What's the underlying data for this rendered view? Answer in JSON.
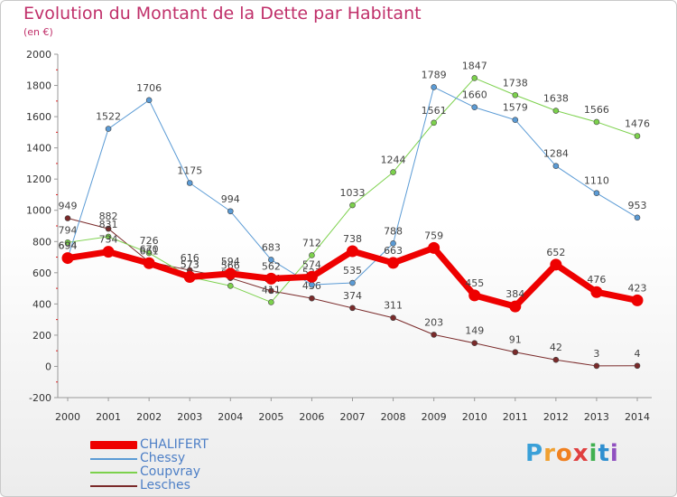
{
  "title": "Evolution du Montant de la Dette par Habitant",
  "subtitle": "(en €)",
  "logo": {
    "letters": [
      "P",
      "r",
      "o",
      "x",
      "i",
      "t",
      "i"
    ],
    "colors": [
      "#3aa0d8",
      "#f0a030",
      "#f08020",
      "#e04040",
      "#40b050",
      "#2f8fd0",
      "#9050c0"
    ]
  },
  "legend": [
    {
      "label": "CHALIFERT",
      "color": "#ee0000"
    },
    {
      "label": "Chessy",
      "color": "#5b9bd5"
    },
    {
      "label": "Coupvray",
      "color": "#7cd14c"
    },
    {
      "label": "Lesches",
      "color": "#7a2a2a"
    }
  ],
  "chart_data": {
    "type": "line",
    "categories": [
      "2000",
      "2001",
      "2002",
      "2003",
      "2004",
      "2005",
      "2006",
      "2007",
      "2008",
      "2009",
      "2010",
      "2011",
      "2012",
      "2013",
      "2014"
    ],
    "ylim": [
      -200,
      2000
    ],
    "yticks": [
      "-200",
      "0",
      "200",
      "400",
      "600",
      "800",
      "1000",
      "1200",
      "1400",
      "1600",
      "1800",
      "2000"
    ],
    "grid": false,
    "legend_position": "bottom-left",
    "series": [
      {
        "name": "Lesches",
        "color": "#7a2a2a",
        "width": 1,
        "values": [
          949,
          882,
          670,
          616,
          566,
          484,
          436,
          374,
          311,
          203,
          149,
          91,
          42,
          3,
          4
        ],
        "labels": [
          "949",
          "882",
          "670",
          "616",
          "566",
          "484",
          "436",
          "374",
          "311",
          "203",
          "149",
          "91",
          "42",
          "3",
          "4"
        ]
      },
      {
        "name": "Coupvray",
        "color": "#7cd14c",
        "width": 1,
        "values": [
          794,
          831,
          726,
          573,
          516,
          411,
          712,
          1033,
          1244,
          1561,
          1847,
          1738,
          1638,
          1566,
          1476
        ],
        "labels": [
          "794",
          "831",
          "726",
          "573",
          "516",
          "411",
          "712",
          "1033",
          "1244",
          "1561",
          "1847",
          "1738",
          "1638",
          "1566",
          "1476"
        ]
      },
      {
        "name": "Chessy",
        "color": "#5b9bd5",
        "width": 1,
        "values": [
          694,
          1522,
          1706,
          1175,
          994,
          683,
          523,
          535,
          788,
          1789,
          1660,
          1579,
          1284,
          1110,
          953
        ],
        "labels": [
          "694",
          "1522",
          "1706",
          "1175",
          "994",
          "683",
          "523",
          "535",
          "788",
          "1789",
          "1660",
          "1579",
          "1284",
          "1110",
          "953"
        ]
      },
      {
        "name": "CHALIFERT",
        "color": "#ee0000",
        "width": 7,
        "values": [
          694,
          734,
          661,
          573,
          594,
          562,
          574,
          738,
          663,
          759,
          455,
          384,
          652,
          476,
          423
        ],
        "labels": [
          "694",
          "734",
          "661",
          "573",
          "594",
          "562",
          "574",
          "738",
          "663",
          "759",
          "455",
          "384",
          "652",
          "476",
          "423"
        ]
      }
    ]
  }
}
